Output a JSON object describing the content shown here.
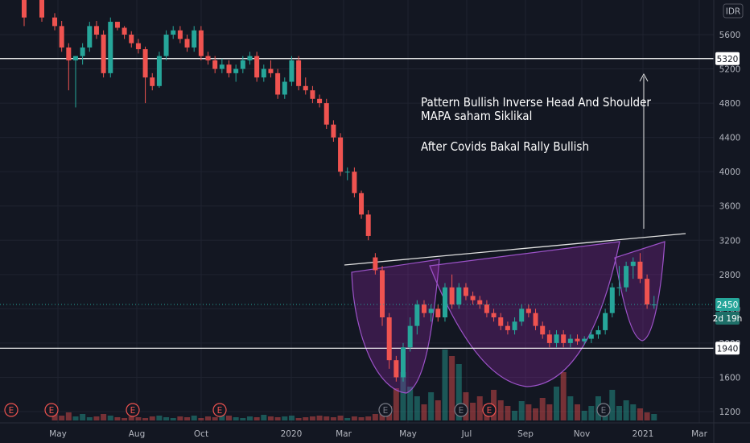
{
  "currency_button": "IDR",
  "annotation": {
    "line1": "Pattern Bullish Inverse Head And Shoulder",
    "line2": "MAPA saham Siklikal",
    "line3": "After Covids Bakal Rally Bullish"
  },
  "colors": {
    "up": "#26a69a",
    "down": "#ef5350",
    "pattern": "#9c27b0",
    "background": "#131722",
    "price_line": "#26a69a"
  },
  "chart_data": {
    "type": "candlestick",
    "y_ticks": [
      1200,
      1600,
      2000,
      2400,
      2800,
      3200,
      3600,
      4000,
      4400,
      4800,
      5200,
      5600
    ],
    "x_ticks": [
      "May",
      "Aug",
      "Oct",
      "2020",
      "Mar",
      "May",
      "Jul",
      "Sep",
      "Nov",
      "2021",
      "Mar"
    ],
    "ylim": [
      1100,
      5850
    ],
    "horizontal_levels": [
      {
        "label": "5320",
        "value": 5320
      },
      {
        "label": "1940",
        "value": 1940
      }
    ],
    "current_price": {
      "label": "2450",
      "value": 2450,
      "countdown": "2d 19h"
    },
    "earnings_markers": [
      "E",
      "E",
      "E",
      "E",
      "E",
      "E",
      "E",
      "E"
    ],
    "candles": [
      [
        5800,
        5850,
        5650,
        5700
      ],
      [
        5700,
        5760,
        5400,
        5450
      ],
      [
        5450,
        5500,
        4950,
        5300
      ],
      [
        5300,
        5350,
        4750,
        5350
      ],
      [
        5350,
        5500,
        5250,
        5450
      ],
      [
        5450,
        5750,
        5400,
        5700
      ],
      [
        5700,
        5760,
        5550,
        5600
      ],
      [
        5600,
        5650,
        5100,
        5150
      ],
      [
        5150,
        5800,
        5100,
        5750
      ],
      [
        5750,
        5750,
        5650,
        5680
      ],
      [
        5680,
        5700,
        5550,
        5600
      ],
      [
        5600,
        5640,
        5450,
        5500
      ],
      [
        5500,
        5550,
        5380,
        5430
      ],
      [
        5430,
        5460,
        4800,
        5100
      ],
      [
        5100,
        5150,
        4950,
        5000
      ],
      [
        5000,
        5400,
        4980,
        5350
      ],
      [
        5350,
        5650,
        5300,
        5600
      ],
      [
        5600,
        5700,
        5550,
        5650
      ],
      [
        5650,
        5700,
        5500,
        5550
      ],
      [
        5550,
        5600,
        5400,
        5450
      ],
      [
        5450,
        5700,
        5400,
        5650
      ],
      [
        5650,
        5700,
        5300,
        5350
      ],
      [
        5350,
        5400,
        5250,
        5300
      ],
      [
        5300,
        5350,
        5150,
        5200
      ],
      [
        5200,
        5320,
        5150,
        5250
      ],
      [
        5250,
        5300,
        5100,
        5150
      ],
      [
        5150,
        5250,
        5050,
        5200
      ],
      [
        5200,
        5350,
        5150,
        5300
      ],
      [
        5300,
        5400,
        5250,
        5350
      ],
      [
        5350,
        5400,
        5050,
        5100
      ],
      [
        5100,
        5250,
        5050,
        5200
      ],
      [
        5200,
        5300,
        5100,
        5150
      ],
      [
        5150,
        5200,
        4850,
        4900
      ],
      [
        4900,
        5100,
        4850,
        5050
      ],
      [
        5050,
        5350,
        5000,
        5300
      ],
      [
        5300,
        5350,
        4950,
        5000
      ],
      [
        5000,
        5100,
        4900,
        4950
      ],
      [
        4950,
        5000,
        4800,
        4850
      ],
      [
        4850,
        4900,
        4750,
        4800
      ],
      [
        4800,
        4850,
        4500,
        4550
      ],
      [
        4550,
        4600,
        4350,
        4400
      ],
      [
        4400,
        4450,
        3950,
        4000
      ],
      [
        4000,
        4050,
        3900,
        4000
      ],
      [
        4000,
        4050,
        3700,
        3750
      ],
      [
        3750,
        3780,
        3450,
        3500
      ],
      [
        3500,
        3550,
        3200,
        3250
      ],
      [
        3000,
        3050,
        2800,
        2850
      ],
      [
        2850,
        2900,
        2200,
        2300
      ],
      [
        2300,
        2350,
        1700,
        1800
      ],
      [
        1800,
        1850,
        1550,
        1600
      ],
      [
        1600,
        2000,
        1550,
        1950
      ],
      [
        1950,
        2300,
        1900,
        2200
      ],
      [
        2200,
        2500,
        2100,
        2450
      ],
      [
        2450,
        2500,
        2300,
        2350
      ],
      [
        2350,
        2450,
        2250,
        2400
      ],
      [
        2400,
        2450,
        2250,
        2300
      ],
      [
        2300,
        2700,
        2250,
        2650
      ],
      [
        2650,
        2800,
        2400,
        2450
      ],
      [
        2450,
        2700,
        2400,
        2650
      ],
      [
        2650,
        2700,
        2500,
        2550
      ],
      [
        2550,
        2600,
        2450,
        2500
      ],
      [
        2500,
        2550,
        2400,
        2450
      ],
      [
        2450,
        2500,
        2300,
        2350
      ],
      [
        2350,
        2400,
        2250,
        2300
      ],
      [
        2300,
        2350,
        2150,
        2200
      ],
      [
        2200,
        2250,
        2100,
        2150
      ],
      [
        2150,
        2300,
        2100,
        2250
      ],
      [
        2250,
        2450,
        2200,
        2400
      ],
      [
        2400,
        2450,
        2300,
        2350
      ],
      [
        2350,
        2400,
        2150,
        2200
      ],
      [
        2200,
        2250,
        2050,
        2100
      ],
      [
        2100,
        2150,
        1950,
        2000
      ],
      [
        2000,
        2150,
        1950,
        2100
      ],
      [
        2100,
        2150,
        1950,
        2000
      ],
      [
        2000,
        2100,
        1950,
        2050
      ],
      [
        2050,
        2100,
        1980,
        2020
      ],
      [
        2020,
        2080,
        1980,
        2050
      ],
      [
        2050,
        2150,
        2000,
        2100
      ],
      [
        2100,
        2200,
        2050,
        2150
      ],
      [
        2150,
        2400,
        2100,
        2350
      ],
      [
        2350,
        2700,
        2300,
        2650
      ],
      [
        2650,
        2900,
        2550,
        2650
      ],
      [
        2650,
        2950,
        2600,
        2900
      ],
      [
        2900,
        3000,
        2750,
        2950
      ],
      [
        2950,
        3050,
        2700,
        2750
      ],
      [
        2750,
        2800,
        2400,
        2450
      ],
      [
        2450,
        2550,
        2400,
        2450
      ]
    ],
    "volumes": [
      18,
      6,
      10,
      5,
      8,
      4,
      5,
      8,
      6,
      4,
      3,
      5,
      4,
      3,
      5,
      6,
      4,
      3,
      5,
      4,
      6,
      3,
      5,
      4,
      8,
      6,
      4,
      3,
      5,
      4,
      7,
      5,
      4,
      5,
      6,
      3,
      4,
      5,
      6,
      5,
      4,
      6,
      3,
      5,
      4,
      5,
      8,
      12,
      18,
      40,
      60,
      42,
      30,
      20,
      35,
      25,
      88,
      80,
      70,
      35,
      22,
      30,
      20,
      38,
      25,
      18,
      12,
      24,
      20,
      15,
      28,
      20,
      42,
      60,
      30,
      20,
      12,
      18,
      30,
      20,
      38,
      18,
      25,
      20,
      15,
      10,
      8
    ]
  }
}
